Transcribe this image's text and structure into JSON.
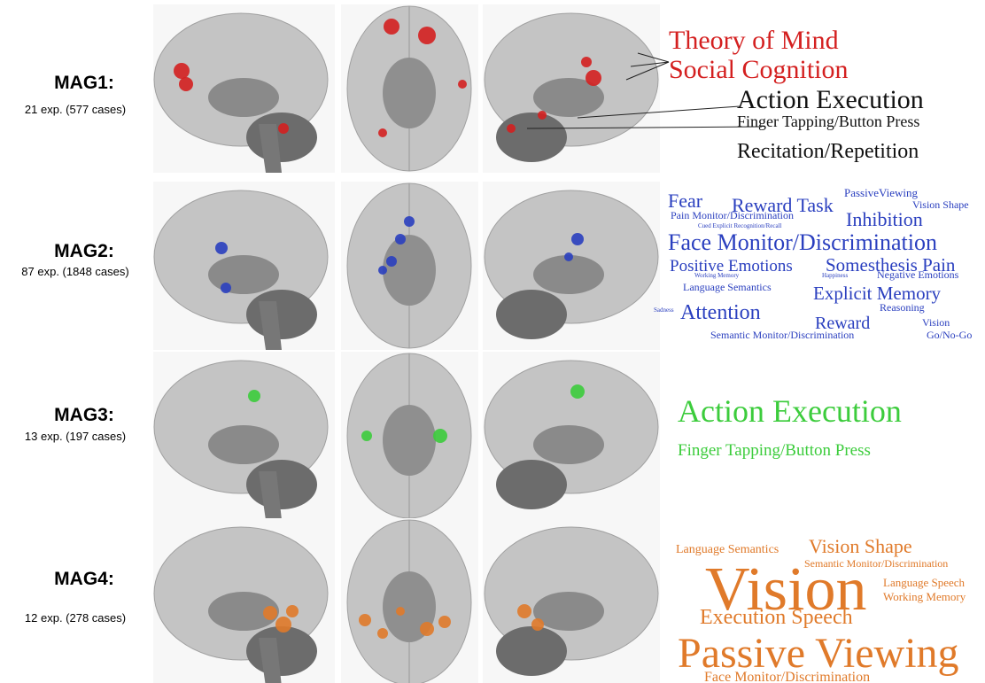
{
  "panels": [
    {
      "label": "MAG1:",
      "details": "21 exp. (577 cases)",
      "color": "#d42020",
      "terms": [
        {
          "text": "Theory of Mind"
        },
        {
          "text": "Social Cognition"
        },
        {
          "text": "Action Execution",
          "color": "#111111"
        },
        {
          "text": "Finger Tapping/Button Press",
          "color": "#111111"
        },
        {
          "text": "Recitation/Repetition",
          "color": "#111111"
        }
      ]
    },
    {
      "label": "MAG2:",
      "details": "87 exp. (1848 cases)",
      "color": "#2a3fbf",
      "terms": [
        {
          "text": "Fear"
        },
        {
          "text": "Reward Task"
        },
        {
          "text": "PassiveViewing"
        },
        {
          "text": "Vision Shape"
        },
        {
          "text": "Pain Monitor/Discrimination"
        },
        {
          "text": "Inhibition"
        },
        {
          "text": "Cued Explicit Recognition/Recall"
        },
        {
          "text": "Face Monitor/Discrimination"
        },
        {
          "text": "Positive Emotions"
        },
        {
          "text": "Somesthesis Pain"
        },
        {
          "text": "Working Memory"
        },
        {
          "text": "Happiness"
        },
        {
          "text": "Negative Emotions"
        },
        {
          "text": "Language Semantics"
        },
        {
          "text": "Explicit Memory"
        },
        {
          "text": "Sadness"
        },
        {
          "text": "Attention"
        },
        {
          "text": "Reasoning"
        },
        {
          "text": "Reward"
        },
        {
          "text": "Vision"
        },
        {
          "text": "Semantic Monitor/Discrimination"
        },
        {
          "text": "Go/No-Go"
        }
      ]
    },
    {
      "label": "MAG3:",
      "details": "13 exp. (197 cases)",
      "color": "#3ccc3c",
      "terms": [
        {
          "text": "Action Execution"
        },
        {
          "text": "Finger Tapping/Button Press"
        }
      ]
    },
    {
      "label": "MAG4:",
      "details": "12 exp. (278 cases)",
      "color": "#e07a2a",
      "terms": [
        {
          "text": "Language Semantics"
        },
        {
          "text": "Vision Shape"
        },
        {
          "text": "Semantic Monitor/Discrimination"
        },
        {
          "text": "Vision"
        },
        {
          "text": "Language Speech"
        },
        {
          "text": "Working Memory"
        },
        {
          "text": "Execution Speech"
        },
        {
          "text": "Passive Viewing"
        },
        {
          "text": "Face Monitor/Discrimination"
        }
      ]
    }
  ]
}
